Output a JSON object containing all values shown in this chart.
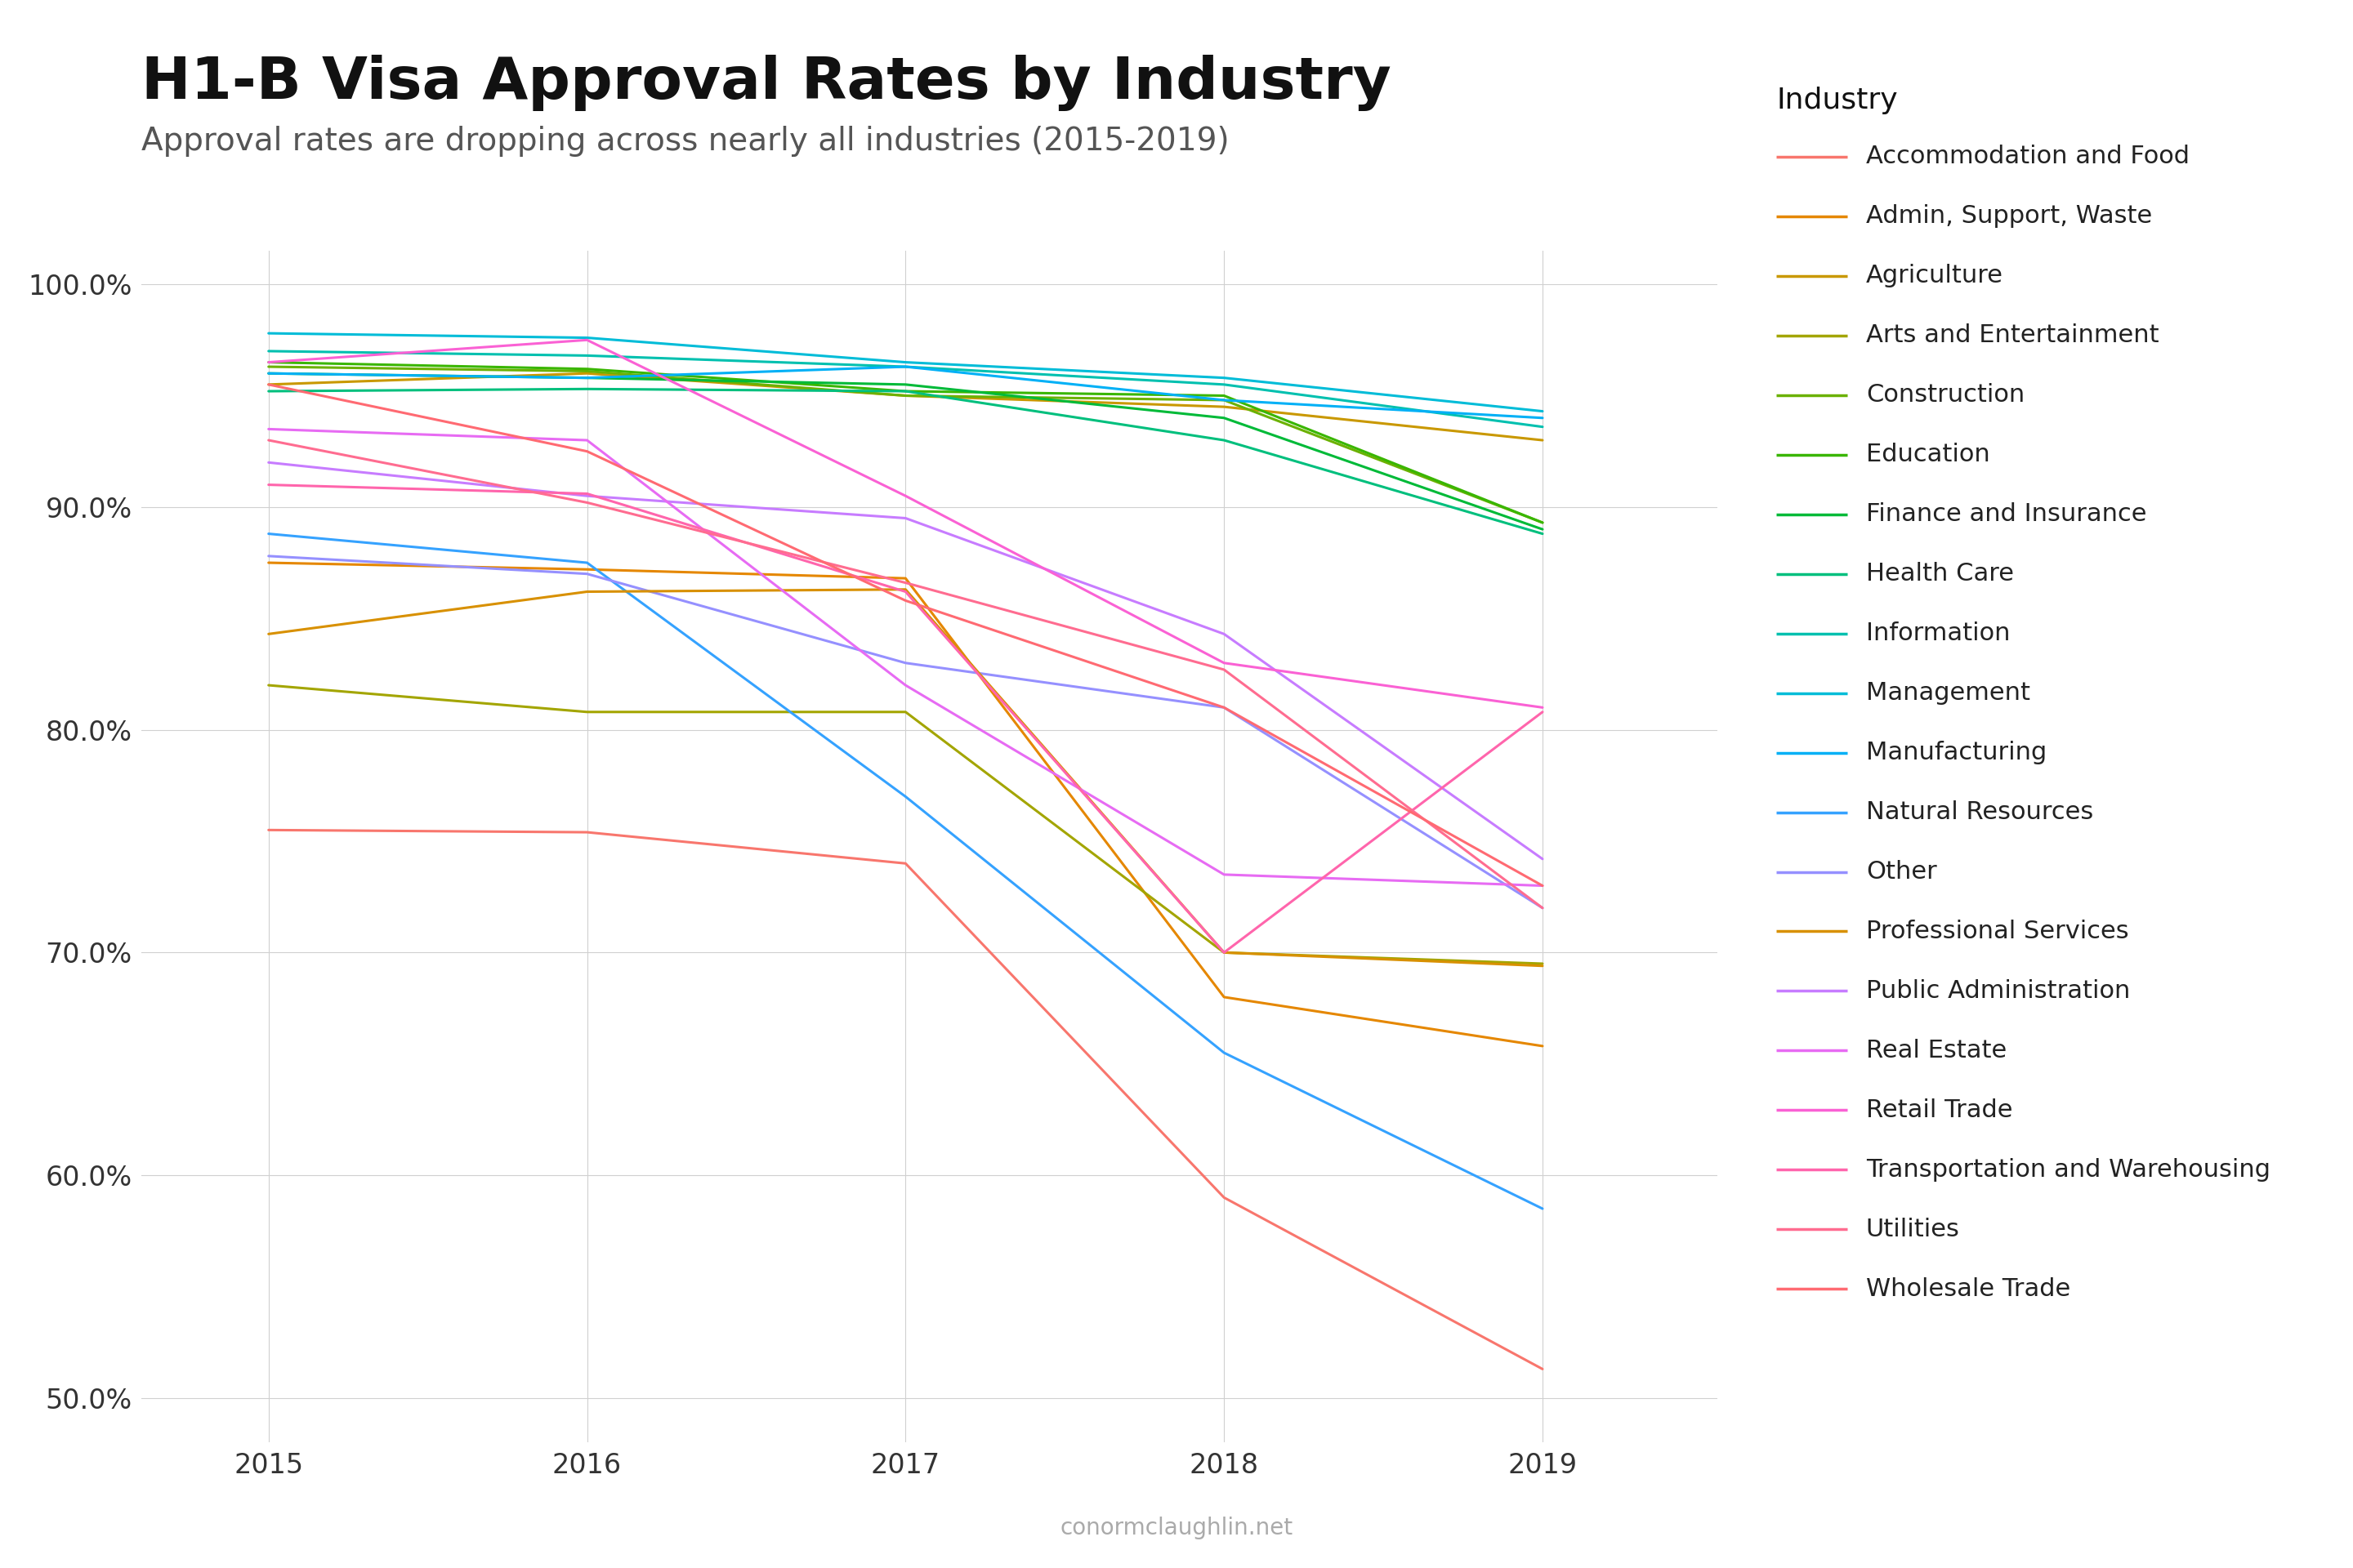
{
  "title": "H1-B Visa Approval Rates by Industry",
  "subtitle": "Approval rates are dropping across nearly all industries (2015-2019)",
  "footer": "conormclaughlin.net",
  "years": [
    2015,
    2016,
    2017,
    2018,
    2019
  ],
  "series": [
    {
      "name": "Accommodation and Food",
      "color": "#F8766D",
      "values": [
        0.755,
        0.754,
        0.74,
        0.59,
        0.513
      ]
    },
    {
      "name": "Admin, Support, Waste",
      "color": "#E58700",
      "values": [
        0.875,
        0.872,
        0.868,
        0.68,
        0.658
      ]
    },
    {
      "name": "Agriculture",
      "color": "#C99800",
      "values": [
        0.955,
        0.96,
        0.95,
        0.945,
        0.93
      ]
    },
    {
      "name": "Arts and Entertainment",
      "color": "#A3A500",
      "values": [
        0.82,
        0.808,
        0.808,
        0.7,
        0.695
      ]
    },
    {
      "name": "Construction",
      "color": "#6BB100",
      "values": [
        0.963,
        0.961,
        0.95,
        0.948,
        0.893
      ]
    },
    {
      "name": "Education",
      "color": "#39B600",
      "values": [
        0.965,
        0.962,
        0.952,
        0.95,
        0.893
      ]
    },
    {
      "name": "Finance and Insurance",
      "color": "#00BA38",
      "values": [
        0.96,
        0.958,
        0.955,
        0.94,
        0.89
      ]
    },
    {
      "name": "Health Care",
      "color": "#00BF7D",
      "values": [
        0.952,
        0.953,
        0.952,
        0.93,
        0.888
      ]
    },
    {
      "name": "Information",
      "color": "#00C0AF",
      "values": [
        0.97,
        0.968,
        0.963,
        0.955,
        0.936
      ]
    },
    {
      "name": "Management",
      "color": "#00BCD8",
      "values": [
        0.978,
        0.976,
        0.965,
        0.958,
        0.943
      ]
    },
    {
      "name": "Manufacturing",
      "color": "#00B0F6",
      "values": [
        0.96,
        0.958,
        0.963,
        0.948,
        0.94
      ]
    },
    {
      "name": "Natural Resources",
      "color": "#35A2FF",
      "values": [
        0.888,
        0.875,
        0.77,
        0.655,
        0.585
      ]
    },
    {
      "name": "Other",
      "color": "#9590FF",
      "values": [
        0.878,
        0.87,
        0.83,
        0.81,
        0.72
      ]
    },
    {
      "name": "Professional Services",
      "color": "#D89000",
      "values": [
        0.843,
        0.862,
        0.863,
        0.7,
        0.694
      ]
    },
    {
      "name": "Public Administration",
      "color": "#C77CFF",
      "values": [
        0.92,
        0.905,
        0.895,
        0.843,
        0.742
      ]
    },
    {
      "name": "Real Estate",
      "color": "#E76BF3",
      "values": [
        0.935,
        0.93,
        0.82,
        0.735,
        0.73
      ]
    },
    {
      "name": "Retail Trade",
      "color": "#FA61D4",
      "values": [
        0.965,
        0.975,
        0.905,
        0.83,
        0.81
      ]
    },
    {
      "name": "Transportation and Warehousing",
      "color": "#FF65AC",
      "values": [
        0.91,
        0.906,
        0.862,
        0.7,
        0.808
      ]
    },
    {
      "name": "Utilities",
      "color": "#FF6C90",
      "values": [
        0.93,
        0.902,
        0.866,
        0.827,
        0.72
      ]
    },
    {
      "name": "Wholesale Trade",
      "color": "#FF6A72",
      "values": [
        0.955,
        0.925,
        0.858,
        0.81,
        0.73
      ]
    }
  ],
  "ylim": [
    0.48,
    1.015
  ],
  "yticks": [
    0.5,
    0.6,
    0.7,
    0.8,
    0.9,
    1.0
  ],
  "bg_color": "#ffffff",
  "grid_color": "#d0d0d0",
  "line_width": 2.2,
  "title_fontsize": 52,
  "subtitle_fontsize": 28,
  "tick_fontsize": 24,
  "legend_fontsize": 22,
  "legend_title_fontsize": 26
}
